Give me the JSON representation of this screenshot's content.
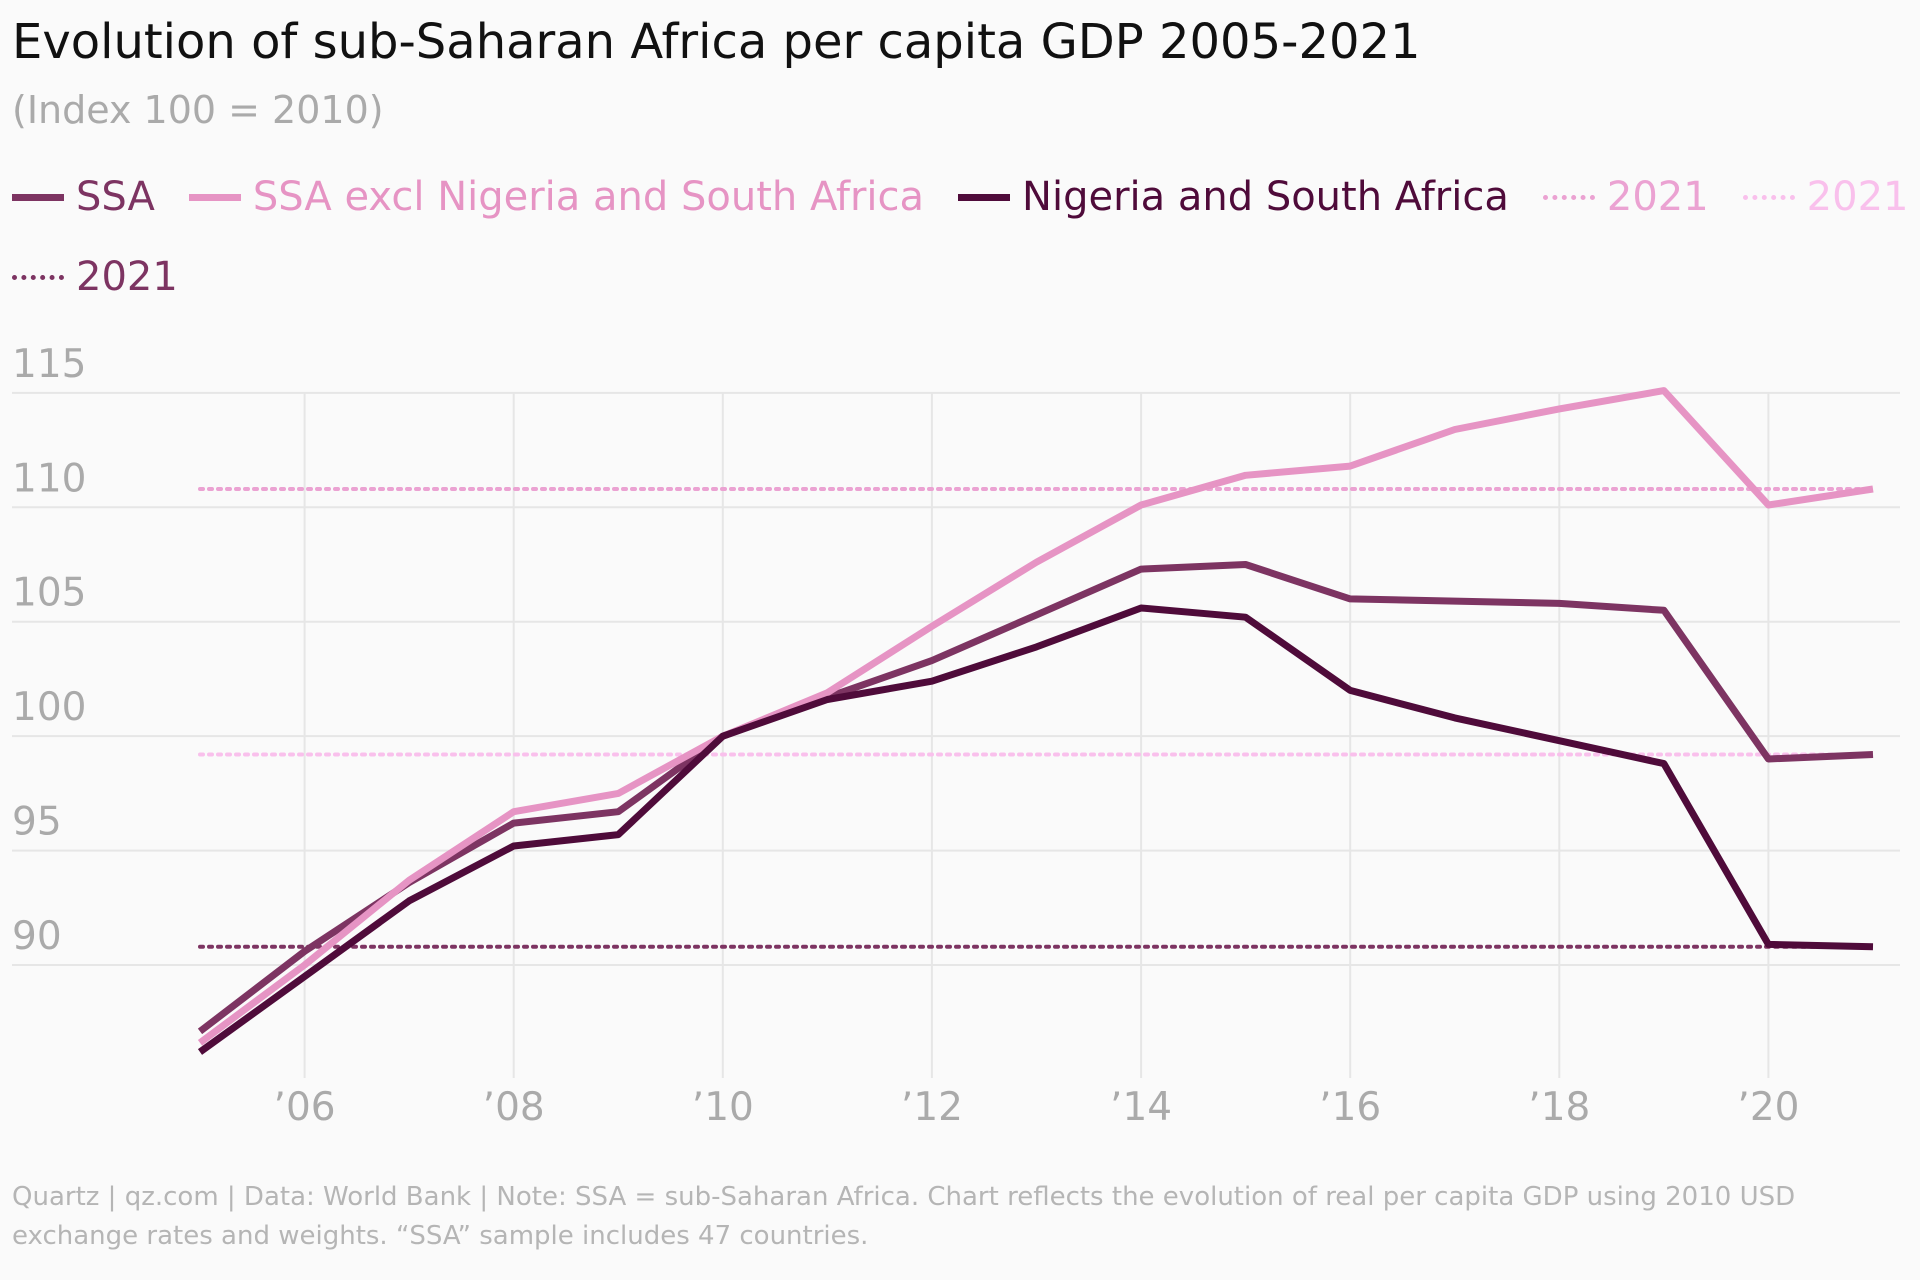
{
  "chart_data": {
    "type": "line",
    "title": "Evolution of sub-Saharan Africa per capita GDP 2005-2021",
    "subtitle": "(Index 100 = 2010)",
    "note": "Quartz | qz.com | Data: World Bank | Note: SSA = sub-Saharan Africa. Chart reflects the evolution of real per capita GDP using 2010 USD exchange rates and weights. “SSA” sample includes 47 countries.",
    "x": [
      2005,
      2006,
      2007,
      2008,
      2009,
      2010,
      2011,
      2012,
      2013,
      2014,
      2015,
      2016,
      2017,
      2018,
      2019,
      2020,
      2021
    ],
    "series": [
      {
        "name": "SSA",
        "color": "#7d3462",
        "dash": "solid",
        "values": [
          87.1,
          90.6,
          93.6,
          96.2,
          96.7,
          100,
          101.7,
          103.3,
          105.3,
          107.3,
          107.5,
          106.0,
          105.9,
          105.8,
          105.5,
          99.0,
          99.2
        ]
      },
      {
        "name": "SSA excl Nigeria and South Africa",
        "color": "#e694c4",
        "dash": "solid",
        "values": [
          86.6,
          90.0,
          93.7,
          96.7,
          97.5,
          100,
          101.9,
          104.8,
          107.6,
          110.1,
          111.4,
          111.8,
          113.4,
          114.3,
          115.1,
          110.1,
          110.8
        ]
      },
      {
        "name": "Nigeria and South Africa",
        "color": "#4f0b3a",
        "dash": "solid",
        "values": [
          86.2,
          89.5,
          92.8,
          95.2,
          95.7,
          100,
          101.6,
          102.4,
          103.9,
          105.6,
          105.2,
          102.0,
          100.8,
          99.8,
          98.8,
          90.9,
          90.8
        ]
      },
      {
        "name": "2021",
        "color": "#eba2d2",
        "dash": "dotted",
        "values": [
          110.8,
          110.8,
          110.8,
          110.8,
          110.8,
          110.8,
          110.8,
          110.8,
          110.8,
          110.8,
          110.8,
          110.8,
          110.8,
          110.8,
          110.8,
          110.8,
          110.8
        ]
      },
      {
        "name": "2021",
        "color": "#f9c0ec",
        "dash": "dotted",
        "values": [
          99.2,
          99.2,
          99.2,
          99.2,
          99.2,
          99.2,
          99.2,
          99.2,
          99.2,
          99.2,
          99.2,
          99.2,
          99.2,
          99.2,
          99.2,
          99.2,
          99.2
        ]
      },
      {
        "name": "2021",
        "color": "#7d3462",
        "dash": "dotted",
        "values": [
          90.8,
          90.8,
          90.8,
          90.8,
          90.8,
          90.8,
          90.8,
          90.8,
          90.8,
          90.8,
          90.8,
          90.8,
          90.8,
          90.8,
          90.8,
          90.8,
          90.8
        ]
      }
    ],
    "xlim": [
      2005,
      2021
    ],
    "xticks": [
      {
        "value": 2006,
        "label": "’06"
      },
      {
        "value": 2008,
        "label": "’08"
      },
      {
        "value": 2010,
        "label": "’10"
      },
      {
        "value": 2012,
        "label": "’12"
      },
      {
        "value": 2014,
        "label": "’14"
      },
      {
        "value": 2016,
        "label": "’16"
      },
      {
        "value": 2018,
        "label": "’18"
      },
      {
        "value": 2020,
        "label": "’20"
      }
    ],
    "ylim": [
      85.5,
      116
    ],
    "yticks": [
      90,
      95,
      100,
      105,
      110,
      115
    ],
    "grid": true
  }
}
